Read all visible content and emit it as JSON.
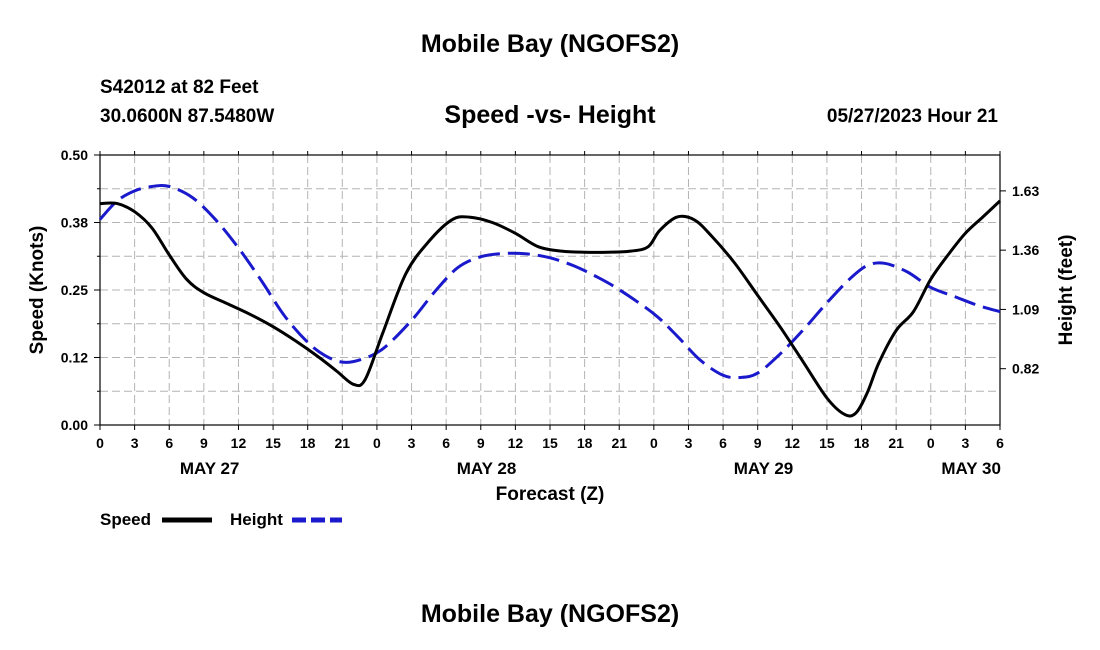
{
  "header": {
    "title": "Mobile Bay (NGOFS2)",
    "station": "S42012 at 82 Feet",
    "coordinates": "30.0600N  87.5480W",
    "subtitle": "Speed -vs- Height",
    "timestamp": "05/27/2023 Hour 21"
  },
  "footer": {
    "title": "Mobile Bay (NGOFS2)"
  },
  "chart_data": {
    "type": "line",
    "xlabel": "Forecast (Z)",
    "ylabel": "Speed (Knots)",
    "y2label": "Height (feet)",
    "x_unit": "hours from May 27 00Z",
    "xlim": [
      0,
      78
    ],
    "ylim": [
      0,
      0.5
    ],
    "y2lim": [
      0.5635,
      1.7935
    ],
    "x_ticks": [
      {
        "x": 0,
        "label": "0"
      },
      {
        "x": 3,
        "label": "3"
      },
      {
        "x": 6,
        "label": "6"
      },
      {
        "x": 9,
        "label": "9"
      },
      {
        "x": 12,
        "label": "12"
      },
      {
        "x": 15,
        "label": "15"
      },
      {
        "x": 18,
        "label": "18"
      },
      {
        "x": 21,
        "label": "21"
      },
      {
        "x": 24,
        "label": "0"
      },
      {
        "x": 27,
        "label": "3"
      },
      {
        "x": 30,
        "label": "6"
      },
      {
        "x": 33,
        "label": "9"
      },
      {
        "x": 36,
        "label": "12"
      },
      {
        "x": 39,
        "label": "15"
      },
      {
        "x": 42,
        "label": "18"
      },
      {
        "x": 45,
        "label": "21"
      },
      {
        "x": 48,
        "label": "0"
      },
      {
        "x": 51,
        "label": "3"
      },
      {
        "x": 54,
        "label": "6"
      },
      {
        "x": 57,
        "label": "9"
      },
      {
        "x": 60,
        "label": "12"
      },
      {
        "x": 63,
        "label": "15"
      },
      {
        "x": 66,
        "label": "18"
      },
      {
        "x": 69,
        "label": "21"
      },
      {
        "x": 72,
        "label": "0"
      },
      {
        "x": 75,
        "label": "3"
      },
      {
        "x": 78,
        "label": "6"
      }
    ],
    "day_labels": [
      {
        "x": 9.5,
        "label": "MAY 27"
      },
      {
        "x": 33.5,
        "label": "MAY 28"
      },
      {
        "x": 57.5,
        "label": "MAY 29"
      },
      {
        "x": 75.5,
        "label": "MAY 30"
      }
    ],
    "y_ticks": [
      {
        "v": 0.0,
        "label": "0.00"
      },
      {
        "v": 0.125,
        "label": "0.12"
      },
      {
        "v": 0.25,
        "label": "0.25"
      },
      {
        "v": 0.375,
        "label": "0.38"
      },
      {
        "v": 0.5,
        "label": "0.50"
      }
    ],
    "y2_ticks": [
      {
        "v": 0.82,
        "label": "0.82"
      },
      {
        "v": 1.09,
        "label": "1.09"
      },
      {
        "v": 1.36,
        "label": "1.36"
      },
      {
        "v": 1.63,
        "label": "1.63"
      }
    ],
    "series": [
      {
        "name": "Speed",
        "axis": "left",
        "color": "#000000",
        "dash": "solid",
        "x": [
          0,
          1.5,
          3,
          4.5,
          6,
          7.5,
          9,
          11,
          13,
          15,
          17,
          19,
          20.5,
          22,
          23,
          24.5,
          26.5,
          28.5,
          30.5,
          32,
          34,
          36,
          38,
          40,
          42,
          44,
          46,
          47.5,
          48.5,
          50,
          51.5,
          53,
          55,
          57,
          59,
          61,
          63,
          64.5,
          65.5,
          66.5,
          67.5,
          69,
          70.5,
          72,
          73.5,
          75,
          76.5,
          78
        ],
        "values": [
          0.41,
          0.41,
          0.395,
          0.365,
          0.315,
          0.27,
          0.245,
          0.225,
          0.205,
          0.182,
          0.155,
          0.125,
          0.1,
          0.075,
          0.085,
          0.17,
          0.28,
          0.34,
          0.38,
          0.385,
          0.375,
          0.355,
          0.33,
          0.322,
          0.32,
          0.32,
          0.322,
          0.33,
          0.36,
          0.385,
          0.38,
          0.35,
          0.3,
          0.24,
          0.18,
          0.115,
          0.05,
          0.02,
          0.022,
          0.06,
          0.115,
          0.175,
          0.21,
          0.27,
          0.315,
          0.355,
          0.385,
          0.415
        ]
      },
      {
        "name": "Height",
        "axis": "right",
        "color": "#1a1acc",
        "dash": "dashed",
        "x": [
          0,
          1.5,
          3,
          4.5,
          6,
          8,
          10,
          12,
          14,
          16,
          18,
          19.5,
          21,
          22.5,
          24.5,
          27,
          29,
          31,
          33,
          35,
          37,
          39,
          41,
          43,
          45,
          48,
          50,
          52,
          54,
          55.5,
          57,
          59,
          61,
          63,
          65,
          66.5,
          68,
          70,
          72,
          74,
          76,
          78
        ],
        "values": [
          1.5,
          1.585,
          1.63,
          1.65,
          1.65,
          1.6,
          1.5,
          1.37,
          1.22,
          1.06,
          0.94,
          0.88,
          0.85,
          0.86,
          0.91,
          1.04,
          1.17,
          1.28,
          1.33,
          1.345,
          1.343,
          1.325,
          1.29,
          1.24,
          1.18,
          1.07,
          0.97,
          0.86,
          0.79,
          0.78,
          0.8,
          0.89,
          1.0,
          1.12,
          1.23,
          1.29,
          1.3,
          1.26,
          1.19,
          1.15,
          1.11,
          1.08
        ]
      }
    ],
    "legend": [
      {
        "label": "Speed",
        "color": "#000000",
        "dash": "solid"
      },
      {
        "label": "Height",
        "color": "#1a1acc",
        "dash": "dashed"
      }
    ]
  }
}
